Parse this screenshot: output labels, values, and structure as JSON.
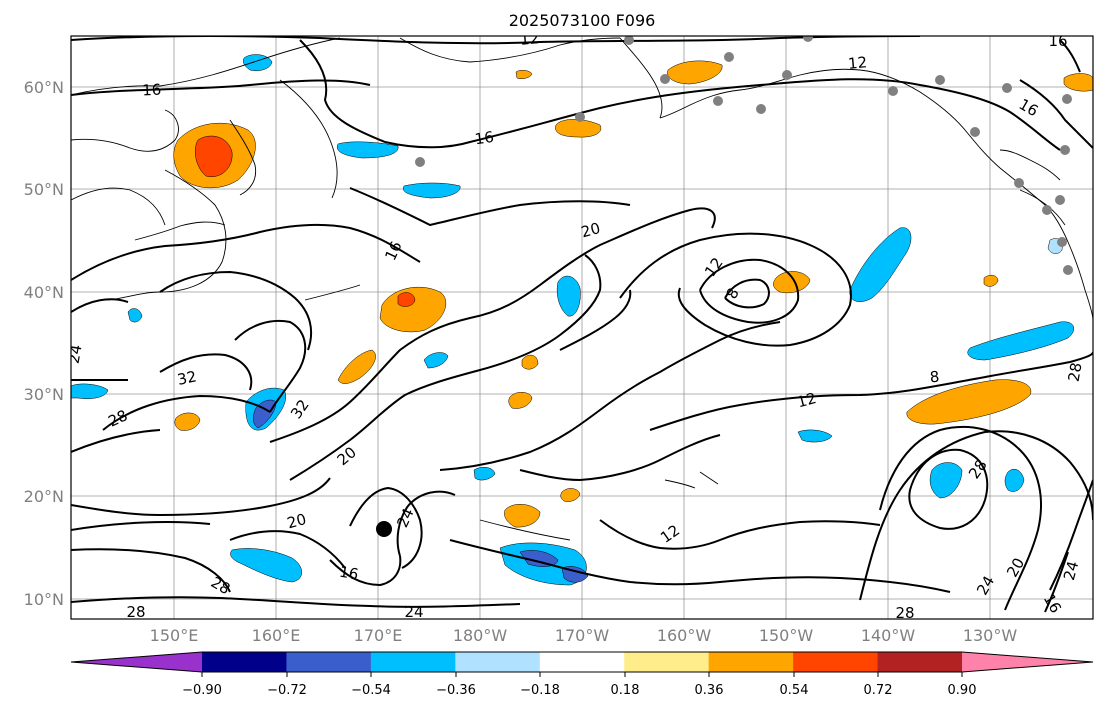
{
  "title": "2025073100 F096",
  "map": {
    "lat_labels": [
      "60°N",
      "50°N",
      "40°N",
      "30°N",
      "20°N",
      "10°N"
    ],
    "lon_labels": [
      "150°E",
      "160°E",
      "170°E",
      "180°W",
      "170°W",
      "160°W",
      "150°W",
      "140°W",
      "130°W"
    ],
    "contour_labels": [
      "12",
      "16",
      "16",
      "12",
      "16",
      "16",
      "20",
      "16",
      "12",
      "8",
      "8",
      "12",
      "32",
      "24",
      "28",
      "32",
      "20",
      "28",
      "20",
      "24",
      "16",
      "28",
      "28",
      "24",
      "12",
      "28",
      "24",
      "20",
      "24",
      "16",
      "28"
    ]
  },
  "colorbar": {
    "ticks": [
      "−0.90",
      "−0.72",
      "−0.54",
      "−0.36",
      "−0.18",
      "0.18",
      "0.36",
      "0.54",
      "0.72",
      "0.90"
    ],
    "colors": [
      "#9932cc",
      "#00008b",
      "#3a5fcd",
      "#00bfff",
      "#b0e2ff",
      "#ffffff",
      "#ffec8b",
      "#ffa500",
      "#ff4500",
      "#b22222",
      "#ff82ab"
    ]
  }
}
